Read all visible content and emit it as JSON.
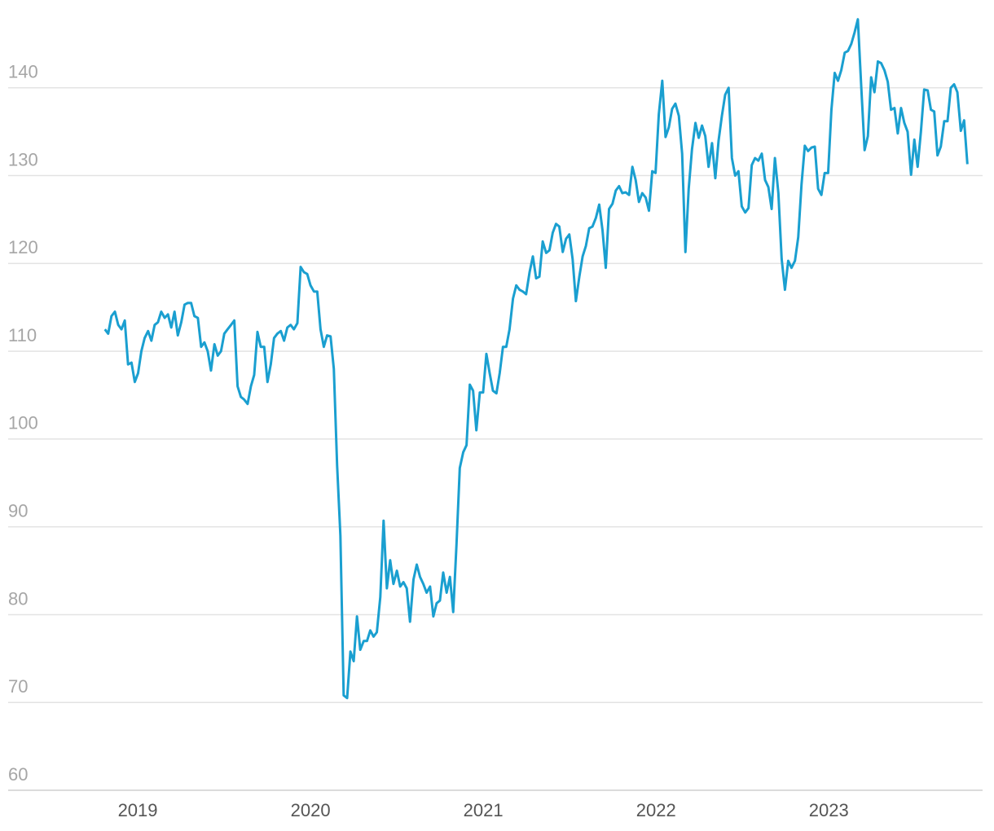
{
  "chart_data": {
    "type": "line",
    "xlim": [
      2018.25,
      2023.89
    ],
    "xticks": [
      2019,
      2020,
      2021,
      2022,
      2023
    ],
    "ylim": [
      60,
      150
    ],
    "yticks": [
      60,
      70,
      80,
      90,
      100,
      110,
      120,
      130,
      140
    ],
    "grid": true,
    "x": [
      2018.81,
      2018.829,
      2018.848,
      2018.868,
      2018.887,
      2018.906,
      2018.925,
      2018.944,
      2018.964,
      2018.983,
      2019.002,
      2019.021,
      2019.04,
      2019.06,
      2019.079,
      2019.098,
      2019.117,
      2019.136,
      2019.156,
      2019.175,
      2019.194,
      2019.213,
      2019.232,
      2019.252,
      2019.271,
      2019.29,
      2019.309,
      2019.328,
      2019.348,
      2019.367,
      2019.386,
      2019.405,
      2019.424,
      2019.444,
      2019.463,
      2019.482,
      2019.501,
      2019.52,
      2019.54,
      2019.559,
      2019.578,
      2019.597,
      2019.616,
      2019.636,
      2019.655,
      2019.674,
      2019.693,
      2019.712,
      2019.732,
      2019.751,
      2019.77,
      2019.789,
      2019.808,
      2019.828,
      2019.847,
      2019.866,
      2019.885,
      2019.904,
      2019.924,
      2019.943,
      2019.962,
      2019.981,
      2020,
      2020.02,
      2020.039,
      2020.058,
      2020.077,
      2020.096,
      2020.116,
      2020.135,
      2020.154,
      2020.173,
      2020.192,
      2020.212,
      2020.231,
      2020.25,
      2020.269,
      2020.288,
      2020.308,
      2020.327,
      2020.346,
      2020.365,
      2020.384,
      2020.404,
      2020.423,
      2020.442,
      2020.461,
      2020.48,
      2020.5,
      2020.519,
      2020.538,
      2020.557,
      2020.576,
      2020.596,
      2020.615,
      2020.634,
      2020.653,
      2020.672,
      2020.692,
      2020.711,
      2020.73,
      2020.749,
      2020.768,
      2020.788,
      2020.807,
      2020.826,
      2020.845,
      2020.864,
      2020.884,
      2020.903,
      2020.922,
      2020.941,
      2020.96,
      2020.98,
      2020.999,
      2021.018,
      2021.037,
      2021.056,
      2021.076,
      2021.095,
      2021.114,
      2021.133,
      2021.152,
      2021.172,
      2021.191,
      2021.21,
      2021.229,
      2021.248,
      2021.268,
      2021.287,
      2021.306,
      2021.325,
      2021.344,
      2021.364,
      2021.383,
      2021.402,
      2021.421,
      2021.44,
      2021.46,
      2021.479,
      2021.498,
      2021.517,
      2021.536,
      2021.556,
      2021.575,
      2021.594,
      2021.613,
      2021.632,
      2021.652,
      2021.671,
      2021.69,
      2021.709,
      2021.728,
      2021.748,
      2021.767,
      2021.786,
      2021.805,
      2021.824,
      2021.844,
      2021.863,
      2021.882,
      2021.901,
      2021.92,
      2021.94,
      2021.959,
      2021.978,
      2021.997,
      2022.016,
      2022.036,
      2022.055,
      2022.074,
      2022.093,
      2022.112,
      2022.132,
      2022.151,
      2022.17,
      2022.189,
      2022.208,
      2022.228,
      2022.247,
      2022.266,
      2022.285,
      2022.304,
      2022.324,
      2022.343,
      2022.362,
      2022.381,
      2022.4,
      2022.42,
      2022.439,
      2022.458,
      2022.477,
      2022.496,
      2022.516,
      2022.535,
      2022.554,
      2022.573,
      2022.592,
      2022.612,
      2022.631,
      2022.65,
      2022.669,
      2022.688,
      2022.708,
      2022.727,
      2022.746,
      2022.765,
      2022.784,
      2022.804,
      2022.823,
      2022.842,
      2022.861,
      2022.88,
      2022.9,
      2022.919,
      2022.938,
      2022.957,
      2022.976,
      2022.996,
      2023.015,
      2023.034,
      2023.053,
      2023.072,
      2023.092,
      2023.111,
      2023.13,
      2023.149,
      2023.168,
      2023.188,
      2023.207,
      2023.226,
      2023.245,
      2023.264,
      2023.284,
      2023.303,
      2023.322,
      2023.341,
      2023.36,
      2023.38,
      2023.399,
      2023.418,
      2023.437,
      2023.456,
      2023.476,
      2023.495,
      2023.514,
      2023.533,
      2023.552,
      2023.572,
      2023.591,
      2023.61,
      2023.629,
      2023.648,
      2023.668,
      2023.687,
      2023.706,
      2023.725,
      2023.744,
      2023.764,
      2023.783,
      2023.802
    ],
    "series": [
      {
        "color": "#1a9fd0",
        "values": [
          112.5,
          112,
          114,
          114.5,
          113,
          112.5,
          113.5,
          108.5,
          108.7,
          106.5,
          107.5,
          110,
          111.5,
          112.3,
          111.2,
          113,
          113.3,
          114.5,
          113.8,
          114.2,
          112.7,
          114.5,
          111.8,
          113.3,
          115.3,
          115.5,
          115.5,
          114,
          113.8,
          110.5,
          111,
          110,
          107.8,
          110.8,
          109.5,
          110,
          112,
          112.5,
          113,
          113.5,
          106,
          104.8,
          104.5,
          104,
          106,
          107.3,
          112.2,
          110.5,
          110.5,
          106.5,
          108.5,
          111.5,
          112,
          112.3,
          111.2,
          112.7,
          113,
          112.5,
          113.2,
          119.6,
          119,
          118.8,
          117.5,
          116.8,
          116.8,
          112.5,
          110.5,
          111.8,
          111.7,
          108,
          97,
          89,
          70.8,
          70.5,
          75.8,
          74.7,
          79.8,
          76,
          77,
          77,
          78.2,
          77.5,
          78,
          82,
          90.7,
          83,
          86.2,
          83.5,
          85,
          83.2,
          83.7,
          83,
          79.2,
          84,
          85.7,
          84.3,
          83.5,
          82.5,
          83.2,
          79.8,
          81.3,
          81.6,
          84.8,
          82.5,
          84.3,
          80.3,
          88,
          96.7,
          98.5,
          99.3,
          106.2,
          105.5,
          101,
          105.3,
          105.3,
          109.7,
          107.5,
          105.5,
          105.2,
          107.5,
          110.5,
          110.5,
          112.5,
          116,
          117.5,
          117,
          116.8,
          116.5,
          119,
          120.8,
          118.3,
          118.5,
          122.5,
          121.2,
          121.5,
          123.5,
          124.5,
          124.2,
          121.3,
          122.8,
          123.3,
          120.5,
          115.7,
          118.5,
          120.8,
          122,
          124,
          124.2,
          125.2,
          126.7,
          123.8,
          119.5,
          126.2,
          126.8,
          128.3,
          128.8,
          128,
          128.1,
          127.8,
          131,
          129.5,
          127,
          128,
          127.5,
          126,
          130.5,
          130.3,
          137,
          140.8,
          134.4,
          135.5,
          137.6,
          138.2,
          136.8,
          132.5,
          121.3,
          128.5,
          133,
          136,
          134.3,
          135.7,
          134.5,
          131,
          133.7,
          129.7,
          134,
          136.8,
          139.2,
          140,
          132,
          130,
          130.5,
          126.5,
          125.8,
          126.3,
          131.2,
          132,
          131.7,
          132.5,
          129.5,
          128.7,
          126.2,
          132,
          128,
          120.5,
          117,
          120.3,
          119.5,
          120.3,
          123,
          129,
          133.4,
          132.8,
          133.2,
          133.3,
          128.5,
          127.8,
          130.3,
          130.3,
          137.5,
          141.7,
          140.8,
          142,
          144,
          144.2,
          145,
          146.3,
          147.8,
          140,
          132.9,
          134.5,
          141.2,
          139.5,
          143,
          142.8,
          142,
          140.7,
          137.5,
          137.7,
          134.8,
          137.7,
          136,
          135,
          130.1,
          134.1,
          131,
          135,
          139.8,
          139.7,
          137.5,
          137.3,
          132.3,
          133.3,
          136.2,
          136.2,
          140,
          140.4,
          139.5,
          135.1,
          136.3,
          131.3
        ]
      }
    ]
  }
}
